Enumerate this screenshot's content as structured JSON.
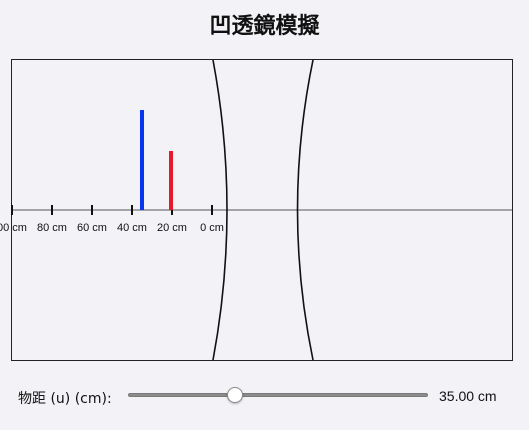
{
  "title": "凹透鏡模擬",
  "slider": {
    "label": "物距 (u) (cm):",
    "value_text": "35.00 cm",
    "fraction": 0.355
  },
  "axis": {
    "tick_labels": [
      "00 cm",
      "80 cm",
      "60 cm",
      "40 cm",
      "20 cm",
      "0 cm"
    ]
  },
  "scene": {
    "object_color": "#0a35f0",
    "image_color": "#e81a2a",
    "axis_color": "#555555",
    "lens_color": "#111111"
  }
}
